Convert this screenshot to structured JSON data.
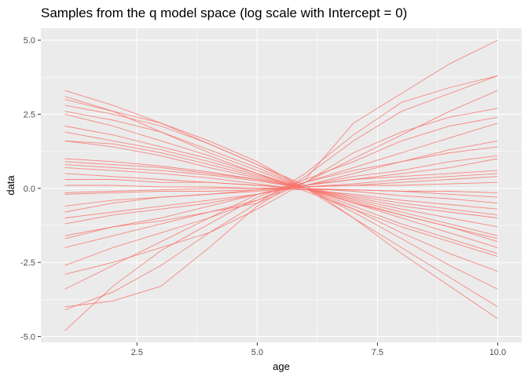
{
  "chart_data": {
    "type": "line",
    "title": "Samples from the q model space (log scale with Intercept = 0)",
    "xlabel": "age",
    "ylabel": "data",
    "xlim": [
      0.5,
      10.5
    ],
    "ylim": [
      -5.2,
      5.4
    ],
    "x_ticks": [
      2.5,
      5.0,
      7.5,
      10.0
    ],
    "x_tick_labels": [
      "2.5",
      "5.0",
      "7.5",
      "10.0"
    ],
    "y_ticks": [
      -5.0,
      -2.5,
      0.0,
      2.5,
      5.0
    ],
    "y_tick_labels": [
      "-5.0",
      "-2.5",
      "0.0",
      "2.5",
      "5.0"
    ],
    "grid": true,
    "line_color": "#f8766d",
    "panel_color": "#ebebeb",
    "x": [
      1,
      2,
      3,
      4,
      5,
      6,
      7,
      8,
      9,
      10
    ],
    "series": [
      {
        "values": [
          -4.8,
          -3.3,
          -2.1,
          -1.2,
          -0.3,
          0.3,
          2.2,
          3.2,
          4.2,
          5.0
        ]
      },
      {
        "values": [
          -4.1,
          -3.5,
          -2.6,
          -1.5,
          -0.5,
          0.5,
          1.8,
          2.9,
          3.4,
          3.8
        ]
      },
      {
        "values": [
          -4.0,
          -3.8,
          -3.3,
          -2.0,
          -0.6,
          0.4,
          1.6,
          2.6,
          3.2,
          3.8
        ]
      },
      {
        "values": [
          -3.4,
          -2.6,
          -1.8,
          -1.0,
          -0.2,
          0.2,
          1.0,
          1.8,
          2.6,
          3.3
        ]
      },
      {
        "values": [
          -2.9,
          -2.5,
          -2.0,
          -1.5,
          -0.7,
          0.2,
          1.2,
          1.9,
          2.4,
          2.7
        ]
      },
      {
        "values": [
          -2.6,
          -2.0,
          -1.5,
          -1.0,
          -0.4,
          0.3,
          0.9,
          1.6,
          2.1,
          2.4
        ]
      },
      {
        "values": [
          -2.0,
          -1.6,
          -1.2,
          -0.8,
          -0.4,
          0.2,
          0.7,
          1.2,
          1.7,
          2.2
        ]
      },
      {
        "values": [
          -1.7,
          -1.3,
          -1.0,
          -0.6,
          -0.2,
          0.1,
          0.5,
          0.9,
          1.3,
          1.6
        ]
      },
      {
        "values": [
          -1.6,
          -1.3,
          -1.1,
          -0.8,
          -0.5,
          0.2,
          0.6,
          0.9,
          1.2,
          1.4
        ]
      },
      {
        "values": [
          -1.2,
          -0.9,
          -0.7,
          -0.5,
          -0.2,
          0.1,
          0.4,
          0.6,
          0.9,
          1.1
        ]
      },
      {
        "values": [
          -1.0,
          -0.8,
          -0.6,
          -0.4,
          -0.2,
          0.1,
          0.3,
          0.5,
          0.7,
          1.0
        ]
      },
      {
        "values": [
          -0.8,
          -0.5,
          -0.3,
          -0.2,
          -0.05,
          0.1,
          0.3,
          0.4,
          0.5,
          0.6
        ]
      },
      {
        "values": [
          -0.6,
          -0.4,
          -0.3,
          -0.2,
          -0.1,
          0.05,
          0.15,
          0.3,
          0.4,
          0.5
        ]
      },
      {
        "values": [
          -0.2,
          -0.15,
          -0.1,
          -0.1,
          -0.05,
          0.05,
          0.1,
          0.2,
          0.3,
          0.4
        ]
      },
      {
        "values": [
          -0.15,
          -0.1,
          -0.05,
          0.0,
          0.0,
          0.05,
          0.1,
          0.1,
          0.15,
          0.2
        ]
      },
      {
        "values": [
          0.1,
          0.1,
          0.05,
          0.05,
          0.0,
          -0.05,
          -0.05,
          -0.1,
          -0.1,
          -0.15
        ]
      },
      {
        "values": [
          0.3,
          0.3,
          0.2,
          0.2,
          0.1,
          0.0,
          -0.05,
          -0.1,
          -0.2,
          -0.3
        ]
      },
      {
        "values": [
          0.5,
          0.4,
          0.3,
          0.2,
          0.1,
          0.0,
          -0.1,
          -0.25,
          -0.35,
          -0.5
        ]
      },
      {
        "values": [
          0.7,
          0.6,
          0.5,
          0.35,
          0.15,
          -0.05,
          -0.2,
          -0.4,
          -0.55,
          -0.7
        ]
      },
      {
        "values": [
          0.8,
          0.7,
          0.6,
          0.45,
          0.25,
          0.0,
          -0.25,
          -0.5,
          -0.7,
          -0.9
        ]
      },
      {
        "values": [
          0.9,
          0.8,
          0.7,
          0.5,
          0.3,
          0.0,
          -0.3,
          -0.6,
          -0.8,
          -1.0
        ]
      },
      {
        "values": [
          1.0,
          0.9,
          0.75,
          0.55,
          0.3,
          0.0,
          -0.35,
          -0.7,
          -1.0,
          -1.3
        ]
      },
      {
        "values": [
          1.6,
          1.4,
          1.1,
          0.7,
          0.35,
          0.0,
          -0.4,
          -0.8,
          -1.2,
          -1.6
        ]
      },
      {
        "values": [
          1.6,
          1.5,
          1.2,
          0.8,
          0.4,
          0.0,
          -0.45,
          -0.9,
          -1.3,
          -1.8
        ]
      },
      {
        "values": [
          1.9,
          1.6,
          1.3,
          0.9,
          0.45,
          0.0,
          -0.5,
          -1.0,
          -1.5,
          -2.0
        ]
      },
      {
        "values": [
          2.5,
          2.1,
          1.6,
          1.1,
          0.5,
          -0.1,
          -0.7,
          -1.3,
          -1.8,
          -2.3
        ]
      },
      {
        "values": [
          2.6,
          2.3,
          1.9,
          1.3,
          0.7,
          0.0,
          -0.7,
          -1.5,
          -2.2,
          -2.8
        ]
      },
      {
        "values": [
          2.8,
          2.5,
          2.1,
          1.5,
          0.8,
          0.0,
          -0.8,
          -1.7,
          -2.6,
          -3.4
        ]
      },
      {
        "values": [
          3.0,
          2.6,
          2.2,
          1.6,
          0.9,
          0.0,
          -1.0,
          -2.0,
          -3.0,
          -4.0
        ]
      },
      {
        "values": [
          3.3,
          2.8,
          2.2,
          1.5,
          0.8,
          0.1,
          -1.0,
          -2.2,
          -3.3,
          -4.4
        ]
      },
      {
        "values": [
          3.1,
          2.6,
          1.9,
          1.2,
          0.6,
          0.0,
          -0.6,
          -1.2,
          -1.7,
          -2.2
        ]
      },
      {
        "values": [
          2.1,
          1.8,
          1.4,
          1.0,
          0.5,
          0.0,
          -0.5,
          -0.9,
          -1.3,
          -1.7
        ]
      }
    ]
  }
}
